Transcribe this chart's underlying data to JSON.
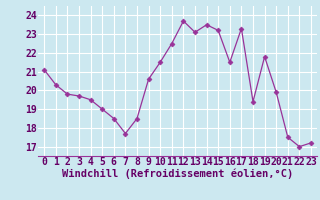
{
  "x": [
    0,
    1,
    2,
    3,
    4,
    5,
    6,
    7,
    8,
    9,
    10,
    11,
    12,
    13,
    14,
    15,
    16,
    17,
    18,
    19,
    20,
    21,
    22,
    23
  ],
  "y": [
    21.1,
    20.3,
    19.8,
    19.7,
    19.5,
    19.0,
    18.5,
    17.7,
    18.5,
    20.6,
    21.5,
    22.5,
    23.7,
    23.1,
    23.5,
    23.2,
    21.5,
    23.3,
    19.4,
    21.8,
    19.9,
    17.5,
    17.0,
    17.2
  ],
  "line_color": "#993399",
  "marker": "D",
  "marker_size": 2.5,
  "bg_color": "#cce8f0",
  "grid_color": "#ffffff",
  "xlabel": "Windchill (Refroidissement éolien,°C)",
  "xlabel_fontsize": 7.5,
  "xlabel_color": "#660066",
  "xtick_labels": [
    "0",
    "1",
    "2",
    "3",
    "4",
    "5",
    "6",
    "7",
    "8",
    "9",
    "10",
    "11",
    "12",
    "13",
    "14",
    "15",
    "16",
    "17",
    "18",
    "19",
    "20",
    "21",
    "22",
    "23"
  ],
  "xticks": [
    0,
    1,
    2,
    3,
    4,
    5,
    6,
    7,
    8,
    9,
    10,
    11,
    12,
    13,
    14,
    15,
    16,
    17,
    18,
    19,
    20,
    21,
    22,
    23
  ],
  "yticks": [
    17,
    18,
    19,
    20,
    21,
    22,
    23,
    24
  ],
  "ylim": [
    16.5,
    24.5
  ],
  "xlim": [
    -0.5,
    23.5
  ],
  "tick_fontsize": 7,
  "tick_color": "#660066"
}
